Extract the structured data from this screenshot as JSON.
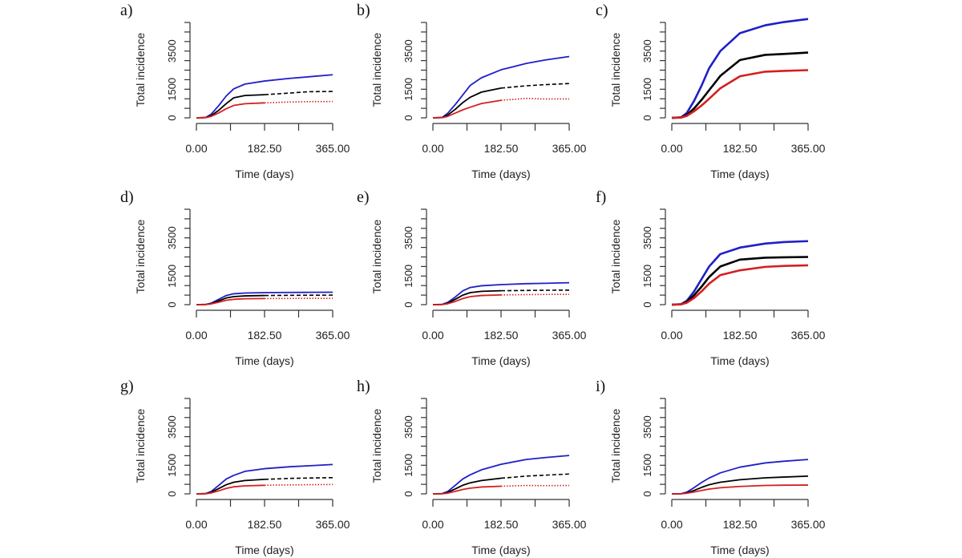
{
  "chart_data": [
    {
      "type": "line",
      "panel_label": "a)",
      "xlabel": "Time (days)",
      "ylabel": "Total incidence",
      "xlim": [
        0,
        365
      ],
      "ylim": [
        0,
        5000
      ],
      "x_ticks": [
        0,
        91.25,
        182.5,
        273.75,
        365
      ],
      "x_tick_labels": [
        "0.00",
        "182.50",
        "365.00"
      ],
      "y_tick_labels": [
        "0",
        "1500",
        "3500"
      ],
      "x": [
        0,
        25,
        40,
        60,
        80,
        100,
        130,
        182.5,
        250,
        300,
        365
      ],
      "series": [
        {
          "color": "#1f1fc8",
          "values": [
            0,
            20,
            200,
            650,
            1150,
            1520,
            1770,
            1930,
            2070,
            2150,
            2257
          ]
        },
        {
          "color": "#000000",
          "values": [
            0,
            15,
            120,
            400,
            750,
            1050,
            1170,
            1214,
            1300,
            1370,
            1386
          ],
          "tail_style": "dashed"
        },
        {
          "color": "#d42020",
          "values": [
            0,
            10,
            80,
            260,
            480,
            650,
            740,
            786,
            830,
            850,
            857
          ],
          "tail_style": "dotted"
        }
      ]
    },
    {
      "type": "line",
      "panel_label": "b)",
      "xlabel": "Time (days)",
      "ylabel": "Total incidence",
      "xlim": [
        0,
        365
      ],
      "ylim": [
        0,
        5000
      ],
      "x_ticks": [
        0,
        91.25,
        182.5,
        273.75,
        365
      ],
      "x_tick_labels": [
        "0.00",
        "182.50",
        "365.00"
      ],
      "y_tick_labels": [
        "0",
        "1500",
        "3500"
      ],
      "x": [
        0,
        25,
        40,
        60,
        80,
        100,
        130,
        182.5,
        250,
        300,
        365
      ],
      "series": [
        {
          "color": "#1f1fc8",
          "values": [
            0,
            25,
            250,
            700,
            1200,
            1700,
            2100,
            2520,
            2850,
            3030,
            3215
          ]
        },
        {
          "color": "#000000",
          "values": [
            0,
            15,
            150,
            450,
            800,
            1080,
            1350,
            1560,
            1680,
            1740,
            1800
          ],
          "tail_style": "dashed"
        },
        {
          "color": "#d42020",
          "values": [
            0,
            10,
            80,
            250,
            420,
            560,
            750,
            920,
            1020,
            990,
            990
          ],
          "tail_style": "dotted"
        }
      ]
    },
    {
      "type": "line",
      "panel_label": "c)",
      "xlabel": "Time (days)",
      "ylabel": "Total incidence",
      "xlim": [
        0,
        365
      ],
      "ylim": [
        0,
        5000
      ],
      "x_ticks": [
        0,
        91.25,
        182.5,
        273.75,
        365
      ],
      "x_tick_labels": [
        "0.00",
        "182.50",
        "365.00"
      ],
      "y_tick_labels": [
        "0",
        "1500",
        "3500"
      ],
      "x": [
        0,
        25,
        40,
        60,
        80,
        100,
        130,
        182.5,
        250,
        300,
        365
      ],
      "series": [
        {
          "color": "#1f1fc8",
          "values": [
            0,
            30,
            250,
            900,
            1700,
            2600,
            3500,
            4440,
            4850,
            5020,
            5180
          ]
        },
        {
          "color": "#000000",
          "values": [
            0,
            20,
            150,
            500,
            950,
            1450,
            2200,
            3030,
            3300,
            3350,
            3420
          ]
        },
        {
          "color": "#d42020",
          "values": [
            0,
            15,
            100,
            350,
            650,
            1000,
            1550,
            2180,
            2420,
            2460,
            2500
          ]
        }
      ]
    },
    {
      "type": "line",
      "panel_label": "d)",
      "xlabel": "Time (days)",
      "ylabel": "Total incidence",
      "xlim": [
        0,
        365
      ],
      "ylim": [
        0,
        5000
      ],
      "x_ticks": [
        0,
        91.25,
        182.5,
        273.75,
        365
      ],
      "x_tick_labels": [
        "0.00",
        "182.50",
        "365.00"
      ],
      "y_tick_labels": [
        "0",
        "1500",
        "3500"
      ],
      "x": [
        0,
        25,
        40,
        60,
        80,
        100,
        130,
        182.5,
        250,
        300,
        365
      ],
      "series": [
        {
          "color": "#1f1fc8",
          "values": [
            0,
            10,
            80,
            280,
            480,
            570,
            610,
            630,
            640,
            645,
            650
          ]
        },
        {
          "color": "#000000",
          "values": [
            0,
            8,
            60,
            200,
            350,
            420,
            460,
            480,
            490,
            495,
            500
          ],
          "tail_style": "dashed"
        },
        {
          "color": "#d42020",
          "values": [
            0,
            5,
            40,
            130,
            230,
            280,
            310,
            320,
            325,
            328,
            330
          ],
          "tail_style": "dotted"
        }
      ]
    },
    {
      "type": "line",
      "panel_label": "e)",
      "xlabel": "Time (days)",
      "ylabel": "Total incidence",
      "xlim": [
        0,
        365
      ],
      "ylim": [
        0,
        5000
      ],
      "x_ticks": [
        0,
        91.25,
        182.5,
        273.75,
        365
      ],
      "x_tick_labels": [
        "0.00",
        "182.50",
        "365.00"
      ],
      "y_tick_labels": [
        "0",
        "1500",
        "3500"
      ],
      "x": [
        0,
        25,
        40,
        60,
        80,
        100,
        130,
        182.5,
        250,
        300,
        365
      ],
      "series": [
        {
          "color": "#1f1fc8",
          "values": [
            0,
            15,
            120,
            400,
            720,
            900,
            990,
            1050,
            1100,
            1120,
            1150
          ]
        },
        {
          "color": "#000000",
          "values": [
            0,
            10,
            80,
            280,
            500,
            630,
            700,
            730,
            745,
            755,
            760
          ],
          "tail_style": "dashed"
        },
        {
          "color": "#d42020",
          "values": [
            0,
            6,
            50,
            170,
            320,
            420,
            480,
            510,
            525,
            535,
            540
          ],
          "tail_style": "dotted"
        }
      ]
    },
    {
      "type": "line",
      "panel_label": "f)",
      "xlabel": "Time (days)",
      "ylabel": "Total incidence",
      "xlim": [
        0,
        365
      ],
      "ylim": [
        0,
        5000
      ],
      "x_ticks": [
        0,
        91.25,
        182.5,
        273.75,
        365
      ],
      "x_tick_labels": [
        "0.00",
        "182.50",
        "365.00"
      ],
      "y_tick_labels": [
        "0",
        "1500",
        "3500"
      ],
      "x": [
        0,
        25,
        40,
        60,
        80,
        100,
        130,
        182.5,
        250,
        300,
        365
      ],
      "series": [
        {
          "color": "#1f1fc8",
          "values": [
            0,
            25,
            200,
            700,
            1350,
            2000,
            2650,
            2990,
            3200,
            3280,
            3330
          ]
        },
        {
          "color": "#000000",
          "values": [
            0,
            20,
            150,
            500,
            950,
            1450,
            2000,
            2360,
            2460,
            2480,
            2500
          ]
        },
        {
          "color": "#d42020",
          "values": [
            0,
            15,
            100,
            350,
            700,
            1100,
            1550,
            1800,
            1980,
            2030,
            2060
          ]
        }
      ]
    },
    {
      "type": "line",
      "panel_label": "g)",
      "xlabel": "Time (days)",
      "ylabel": "Total incidence",
      "xlim": [
        0,
        365
      ],
      "ylim": [
        0,
        5000
      ],
      "x_ticks": [
        0,
        91.25,
        182.5,
        273.75,
        365
      ],
      "x_tick_labels": [
        "0.00",
        "182.50",
        "365.00"
      ],
      "y_tick_labels": [
        "0",
        "1500",
        "3500"
      ],
      "x": [
        0,
        25,
        40,
        60,
        80,
        100,
        130,
        182.5,
        250,
        300,
        365
      ],
      "series": [
        {
          "color": "#1f1fc8",
          "values": [
            0,
            15,
            130,
            450,
            780,
            970,
            1180,
            1320,
            1420,
            1470,
            1540
          ]
        },
        {
          "color": "#000000",
          "values": [
            0,
            10,
            80,
            280,
            480,
            610,
            700,
            760,
            810,
            830,
            850
          ],
          "tail_style": "dashed"
        },
        {
          "color": "#d42020",
          "values": [
            0,
            6,
            50,
            160,
            290,
            370,
            420,
            450,
            470,
            480,
            490
          ],
          "tail_style": "dotted"
        }
      ]
    },
    {
      "type": "line",
      "panel_label": "h)",
      "xlabel": "Time (days)",
      "ylabel": "Total incidence",
      "xlim": [
        0,
        365
      ],
      "ylim": [
        0,
        5000
      ],
      "x_ticks": [
        0,
        91.25,
        182.5,
        273.75,
        365
      ],
      "x_tick_labels": [
        "0.00",
        "182.50",
        "365.00"
      ],
      "y_tick_labels": [
        "0",
        "1500",
        "3500"
      ],
      "x": [
        0,
        25,
        40,
        60,
        80,
        100,
        130,
        182.5,
        250,
        300,
        365
      ],
      "series": [
        {
          "color": "#1f1fc8",
          "values": [
            0,
            15,
            130,
            450,
            780,
            1000,
            1260,
            1550,
            1800,
            1900,
            2010
          ]
        },
        {
          "color": "#000000",
          "values": [
            0,
            10,
            80,
            260,
            450,
            580,
            700,
            820,
            930,
            980,
            1040
          ],
          "tail_style": "dashed"
        },
        {
          "color": "#d42020",
          "values": [
            0,
            5,
            40,
            130,
            230,
            300,
            360,
            400,
            440,
            430,
            440
          ],
          "tail_style": "dotted"
        }
      ]
    },
    {
      "type": "line",
      "panel_label": "i)",
      "xlabel": "Time (days)",
      "ylabel": "Total incidence",
      "xlim": [
        0,
        365
      ],
      "ylim": [
        0,
        5000
      ],
      "x_ticks": [
        0,
        91.25,
        182.5,
        273.75,
        365
      ],
      "x_tick_labels": [
        "0.00",
        "182.50",
        "365.00"
      ],
      "y_tick_labels": [
        "0",
        "1500",
        "3500"
      ],
      "x": [
        0,
        25,
        40,
        60,
        80,
        100,
        130,
        182.5,
        250,
        300,
        365
      ],
      "series": [
        {
          "color": "#1f1fc8",
          "values": [
            0,
            10,
            90,
            330,
            600,
            830,
            1100,
            1400,
            1620,
            1710,
            1800
          ]
        },
        {
          "color": "#000000",
          "values": [
            0,
            6,
            50,
            180,
            340,
            480,
            610,
            740,
            840,
            880,
            930
          ]
        },
        {
          "color": "#d42020",
          "values": [
            0,
            4,
            30,
            100,
            180,
            250,
            320,
            390,
            440,
            455,
            460
          ]
        }
      ]
    }
  ]
}
